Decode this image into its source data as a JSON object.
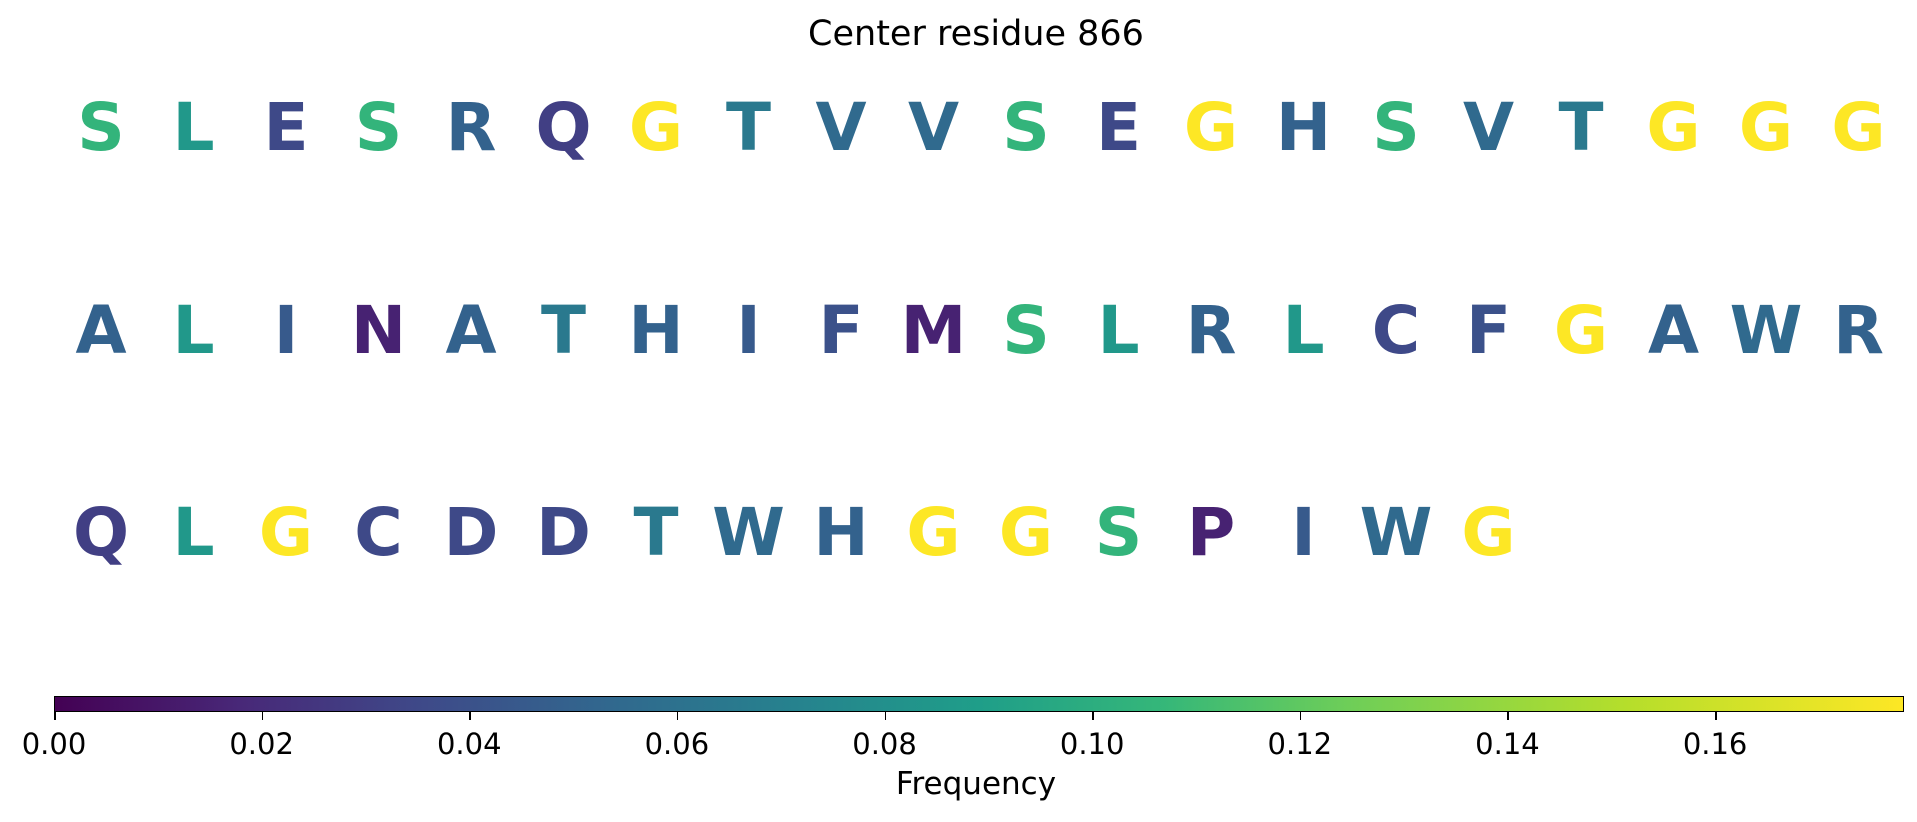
{
  "chart_data": {
    "type": "heatmap",
    "title": "Center residue 866",
    "rows": [
      {
        "letters": [
          "S",
          "L",
          "E",
          "S",
          "R",
          "Q",
          "G",
          "T",
          "V",
          "V",
          "S",
          "E",
          "G",
          "H",
          "S",
          "V",
          "T",
          "G",
          "G",
          "G"
        ],
        "values": [
          0.105,
          0.085,
          0.035,
          0.105,
          0.05,
          0.03,
          0.178,
          0.065,
          0.055,
          0.055,
          0.105,
          0.035,
          0.178,
          0.05,
          0.105,
          0.055,
          0.065,
          0.178,
          0.178,
          0.178
        ]
      },
      {
        "letters": [
          "A",
          "L",
          "I",
          "N",
          "A",
          "T",
          "H",
          "I",
          "F",
          "M",
          "S",
          "L",
          "R",
          "L",
          "C",
          "F",
          "G",
          "A",
          "W",
          "R"
        ],
        "values": [
          0.05,
          0.085,
          0.045,
          0.015,
          0.05,
          0.065,
          0.05,
          0.045,
          0.04,
          0.015,
          0.105,
          0.085,
          0.05,
          0.085,
          0.035,
          0.04,
          0.178,
          0.05,
          0.055,
          0.05
        ]
      },
      {
        "letters": [
          "Q",
          "L",
          "G",
          "C",
          "D",
          "D",
          "T",
          "W",
          "H",
          "G",
          "G",
          "S",
          "P",
          "I",
          "W",
          "G"
        ],
        "values": [
          0.03,
          0.085,
          0.178,
          0.035,
          0.035,
          0.035,
          0.065,
          0.055,
          0.05,
          0.178,
          0.178,
          0.105,
          0.015,
          0.045,
          0.055,
          0.178
        ]
      }
    ],
    "colormap": "viridis",
    "colorbar": {
      "label": "Frequency",
      "range": [
        0.0,
        0.178
      ],
      "ticks": [
        "0.00",
        "0.02",
        "0.04",
        "0.06",
        "0.08",
        "0.10",
        "0.12",
        "0.14",
        "0.16"
      ]
    }
  }
}
